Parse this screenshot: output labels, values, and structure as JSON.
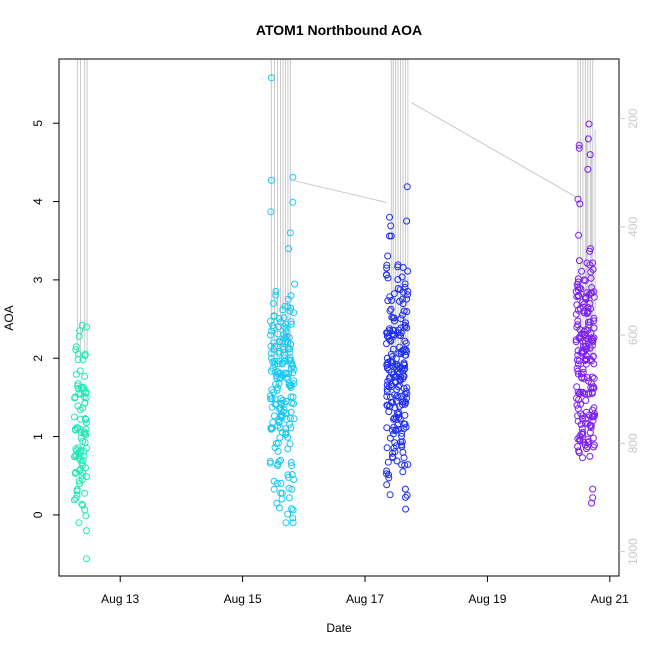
{
  "chart_data": {
    "type": "scatter",
    "title": "ATOM1 Northbound AOA",
    "xlabel": "Date",
    "ylabel": "AOA",
    "x_ticks": [
      "Aug 13",
      "Aug 15",
      "Aug 17",
      "Aug 19",
      "Aug 21"
    ],
    "x_tick_days": [
      13,
      15,
      17,
      19,
      21
    ],
    "xlim_days": [
      12.0,
      21.15
    ],
    "y_ticks": [
      0,
      1,
      2,
      3,
      4,
      5
    ],
    "ylim": [
      -0.78,
      5.82
    ],
    "y2_ticks": [
      200,
      400,
      600,
      800,
      1000
    ],
    "y2lim": [
      1045,
      90
    ],
    "grid": false,
    "point_colors": [
      "#1de9b6",
      "#18c8f5",
      "#1f2ef0",
      "#7b1ff2"
    ],
    "line_color": "#c8c8c8",
    "series": [
      {
        "color": "#1de9b6",
        "day_range": [
          12.25,
          12.45
        ],
        "n_points": 90,
        "clusters": [
          {
            "mu": 1.6,
            "sd": 0.35,
            "w": 0.45
          },
          {
            "mu": 0.8,
            "sd": 0.3,
            "w": 0.35
          },
          {
            "mu": 0.3,
            "sd": 0.2,
            "w": 0.2
          }
        ],
        "extra_points": [
          {
            "day": 12.38,
            "aoa": 2.42
          },
          {
            "day": 12.45,
            "aoa": 2.4
          },
          {
            "day": 12.43,
            "aoa": 2.05
          },
          {
            "day": 12.45,
            "aoa": -0.2
          },
          {
            "day": 12.44,
            "aoa": -0.01
          },
          {
            "day": 12.45,
            "aoa": -0.56
          }
        ]
      },
      {
        "color": "#18c8f5",
        "day_range": [
          15.45,
          15.85
        ],
        "n_points": 190,
        "clusters": [
          {
            "mu": 1.6,
            "sd": 0.4,
            "w": 0.6
          },
          {
            "mu": 2.3,
            "sd": 0.3,
            "w": 0.25
          },
          {
            "mu": 0.6,
            "sd": 0.35,
            "w": 0.15
          }
        ],
        "extra_points": [
          {
            "day": 15.47,
            "aoa": 5.58
          },
          {
            "day": 15.47,
            "aoa": 4.27
          },
          {
            "day": 15.46,
            "aoa": 3.87
          },
          {
            "day": 15.82,
            "aoa": 4.31
          },
          {
            "day": 15.82,
            "aoa": 3.99
          },
          {
            "day": 15.78,
            "aoa": 3.6
          },
          {
            "day": 15.75,
            "aoa": 3.4
          },
          {
            "day": 15.79,
            "aoa": 2.8
          },
          {
            "day": 15.82,
            "aoa": -0.04
          },
          {
            "day": 15.8,
            "aoa": 0.08
          }
        ]
      },
      {
        "color": "#1f2ef0",
        "day_range": [
          17.35,
          17.7
        ],
        "n_points": 210,
        "clusters": [
          {
            "mu": 1.7,
            "sd": 0.5,
            "w": 0.7
          },
          {
            "mu": 2.6,
            "sd": 0.4,
            "w": 0.2
          },
          {
            "mu": 0.7,
            "sd": 0.3,
            "w": 0.1
          }
        ],
        "extra_points": [
          {
            "day": 17.69,
            "aoa": 4.19
          },
          {
            "day": 17.4,
            "aoa": 3.8
          },
          {
            "day": 17.42,
            "aoa": 3.69
          },
          {
            "day": 17.68,
            "aoa": 3.75
          },
          {
            "day": 17.4,
            "aoa": 3.56
          },
          {
            "day": 17.43,
            "aoa": 3.56
          },
          {
            "day": 17.69,
            "aoa": 0.25
          },
          {
            "day": 17.66,
            "aoa": 0.33
          }
        ]
      },
      {
        "color": "#7b1ff2",
        "day_range": [
          20.45,
          20.75
        ],
        "n_points": 190,
        "clusters": [
          {
            "mu": 1.9,
            "sd": 0.45,
            "w": 0.5
          },
          {
            "mu": 1.0,
            "sd": 0.2,
            "w": 0.25
          },
          {
            "mu": 2.7,
            "sd": 0.35,
            "w": 0.25
          }
        ],
        "extra_points": [
          {
            "day": 20.66,
            "aoa": 4.99
          },
          {
            "day": 20.5,
            "aoa": 4.72
          },
          {
            "day": 20.5,
            "aoa": 4.68
          },
          {
            "day": 20.65,
            "aoa": 4.8
          },
          {
            "day": 20.68,
            "aoa": 4.6
          },
          {
            "day": 20.64,
            "aoa": 4.41
          },
          {
            "day": 20.48,
            "aoa": 4.03
          },
          {
            "day": 20.51,
            "aoa": 3.97
          },
          {
            "day": 20.49,
            "aoa": 3.57
          },
          {
            "day": 20.7,
            "aoa": 0.15
          },
          {
            "day": 20.72,
            "aoa": 0.22
          },
          {
            "day": 20.72,
            "aoa": 0.33
          }
        ]
      }
    ],
    "secondary_line": {
      "spike_days": [
        [
          12.3,
          12.35,
          12.42,
          12.46
        ],
        [
          15.47,
          15.52,
          15.57,
          15.62,
          15.66,
          15.7,
          15.74,
          15.78
        ],
        [
          17.43,
          17.46,
          17.5,
          17.54,
          17.58,
          17.62,
          17.66,
          17.7
        ],
        [
          20.48,
          20.52,
          20.56,
          20.6,
          20.64,
          20.68,
          20.72
        ]
      ],
      "spike_base": 640,
      "spike_top": 90,
      "connectors": [
        {
          "from": [
            15.85,
            315
          ],
          "to": [
            17.35,
            355
          ]
        },
        {
          "from": [
            17.75,
            170
          ],
          "to": [
            20.45,
            345
          ]
        }
      ],
      "short_spikes": [
        {
          "day": 20.62,
          "top": 230
        },
        {
          "day": 20.76,
          "top": 220
        },
        {
          "day": 20.7,
          "top": 260
        }
      ]
    }
  }
}
